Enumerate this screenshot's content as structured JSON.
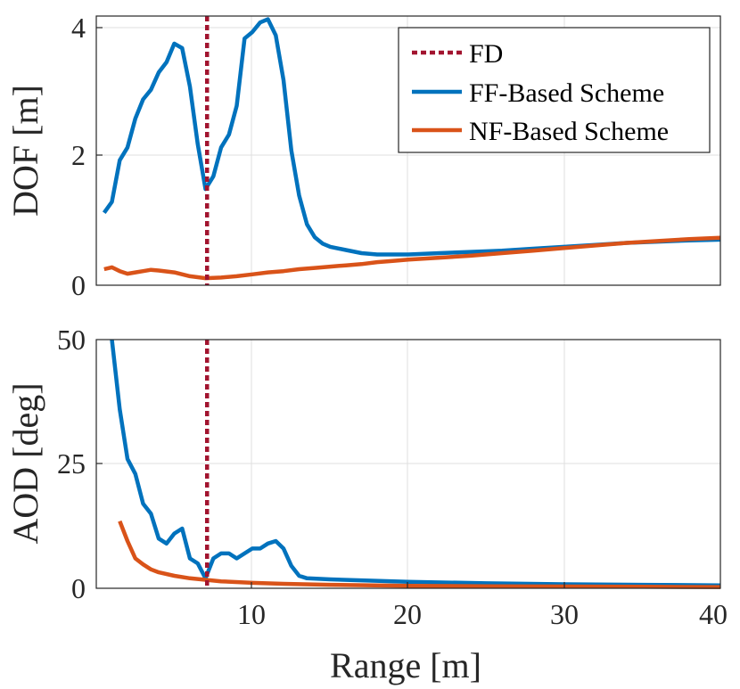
{
  "chart_data": [
    {
      "type": "line",
      "xlabel": "",
      "ylabel": "DOF [m]",
      "xlim": [
        0,
        40
      ],
      "ylim": [
        0,
        4.2
      ],
      "yticks": [
        0,
        2,
        4
      ],
      "yticklabels": [
        "0",
        "2",
        "4"
      ],
      "grid": true,
      "legend": "top-right",
      "vline": {
        "name": "FD",
        "x": 7.1,
        "color": "#A2142F"
      },
      "series": [
        {
          "name": "FF-Based Scheme",
          "color": "#0072BD",
          "x": [
            0.5,
            1.0,
            1.5,
            2.0,
            2.5,
            3.0,
            3.5,
            4.0,
            4.5,
            5.0,
            5.5,
            6.0,
            6.5,
            7.0,
            7.5,
            8.0,
            8.5,
            9.0,
            9.5,
            10.0,
            10.5,
            11.0,
            11.5,
            12.0,
            12.5,
            13.0,
            13.5,
            14.0,
            14.5,
            15,
            16,
            17,
            18,
            19,
            20,
            22,
            24,
            26,
            28,
            30,
            32,
            34,
            36,
            38,
            40
          ],
          "values": [
            1.13,
            1.3,
            1.95,
            2.15,
            2.6,
            2.9,
            3.05,
            3.32,
            3.48,
            3.77,
            3.7,
            3.1,
            2.2,
            1.5,
            1.7,
            2.15,
            2.35,
            2.8,
            3.85,
            3.95,
            4.1,
            4.15,
            3.9,
            3.2,
            2.1,
            1.4,
            0.95,
            0.75,
            0.65,
            0.6,
            0.55,
            0.5,
            0.48,
            0.48,
            0.48,
            0.5,
            0.52,
            0.54,
            0.57,
            0.6,
            0.63,
            0.66,
            0.68,
            0.7,
            0.71
          ]
        },
        {
          "name": "NF-Based Scheme",
          "color": "#D95319",
          "x": [
            0.5,
            1.0,
            1.5,
            2.0,
            2.5,
            3.0,
            3.5,
            4.0,
            5.0,
            6.0,
            7.0,
            8.0,
            9.0,
            10.0,
            11.0,
            12.0,
            13.0,
            14.0,
            15.0,
            16.0,
            17.0,
            18.0,
            19.0,
            20.0,
            22.0,
            24.0,
            26.0,
            28.0,
            30.0,
            32.0,
            34.0,
            36.0,
            38.0,
            40.0
          ],
          "values": [
            0.25,
            0.28,
            0.22,
            0.18,
            0.2,
            0.22,
            0.24,
            0.23,
            0.2,
            0.14,
            0.11,
            0.12,
            0.14,
            0.17,
            0.2,
            0.22,
            0.25,
            0.27,
            0.29,
            0.31,
            0.33,
            0.36,
            0.38,
            0.4,
            0.43,
            0.46,
            0.5,
            0.54,
            0.58,
            0.62,
            0.66,
            0.69,
            0.72,
            0.74
          ]
        }
      ]
    },
    {
      "type": "line",
      "xlabel": "Range [m]",
      "ylabel": "AOD [deg]",
      "xlim": [
        0,
        40
      ],
      "ylim": [
        0,
        50
      ],
      "xticks": [
        10,
        20,
        30,
        40
      ],
      "xticklabels": [
        "10",
        "20",
        "30",
        "40"
      ],
      "yticks": [
        0,
        25,
        50
      ],
      "yticklabels": [
        "0",
        "25",
        "50"
      ],
      "grid": true,
      "vline": {
        "name": "FD",
        "x": 7.1,
        "color": "#A2142F"
      },
      "series": [
        {
          "name": "FF-Based Scheme",
          "color": "#0072BD",
          "x": [
            1.0,
            1.5,
            2.0,
            2.5,
            3.0,
            3.5,
            4.0,
            4.5,
            5.0,
            5.5,
            6.0,
            6.5,
            7.0,
            7.5,
            8.0,
            8.5,
            9.0,
            9.5,
            10.0,
            10.5,
            11.0,
            11.5,
            12.0,
            12.5,
            13.0,
            13.5,
            15,
            20,
            25,
            30,
            35,
            40
          ],
          "values": [
            50,
            36,
            26,
            23,
            17,
            15,
            10,
            9,
            11,
            12,
            6,
            5,
            2,
            6,
            7,
            7,
            6,
            7,
            8,
            8,
            9,
            9.5,
            8,
            4.5,
            2.5,
            2,
            1.8,
            1.3,
            1.0,
            0.8,
            0.7,
            0.6
          ]
        },
        {
          "name": "NF-Based Scheme",
          "color": "#D95319",
          "x": [
            1.5,
            2.0,
            2.5,
            3.0,
            3.5,
            4.0,
            5.0,
            6.0,
            7.0,
            8.0,
            10.0,
            12.0,
            15.0,
            20.0,
            25.0,
            30.0,
            35.0,
            40.0
          ],
          "values": [
            13.5,
            9.5,
            6.0,
            4.8,
            3.8,
            3.2,
            2.5,
            2.0,
            1.7,
            1.4,
            1.1,
            0.9,
            0.7,
            0.5,
            0.4,
            0.35,
            0.3,
            0.25
          ]
        }
      ]
    }
  ]
}
